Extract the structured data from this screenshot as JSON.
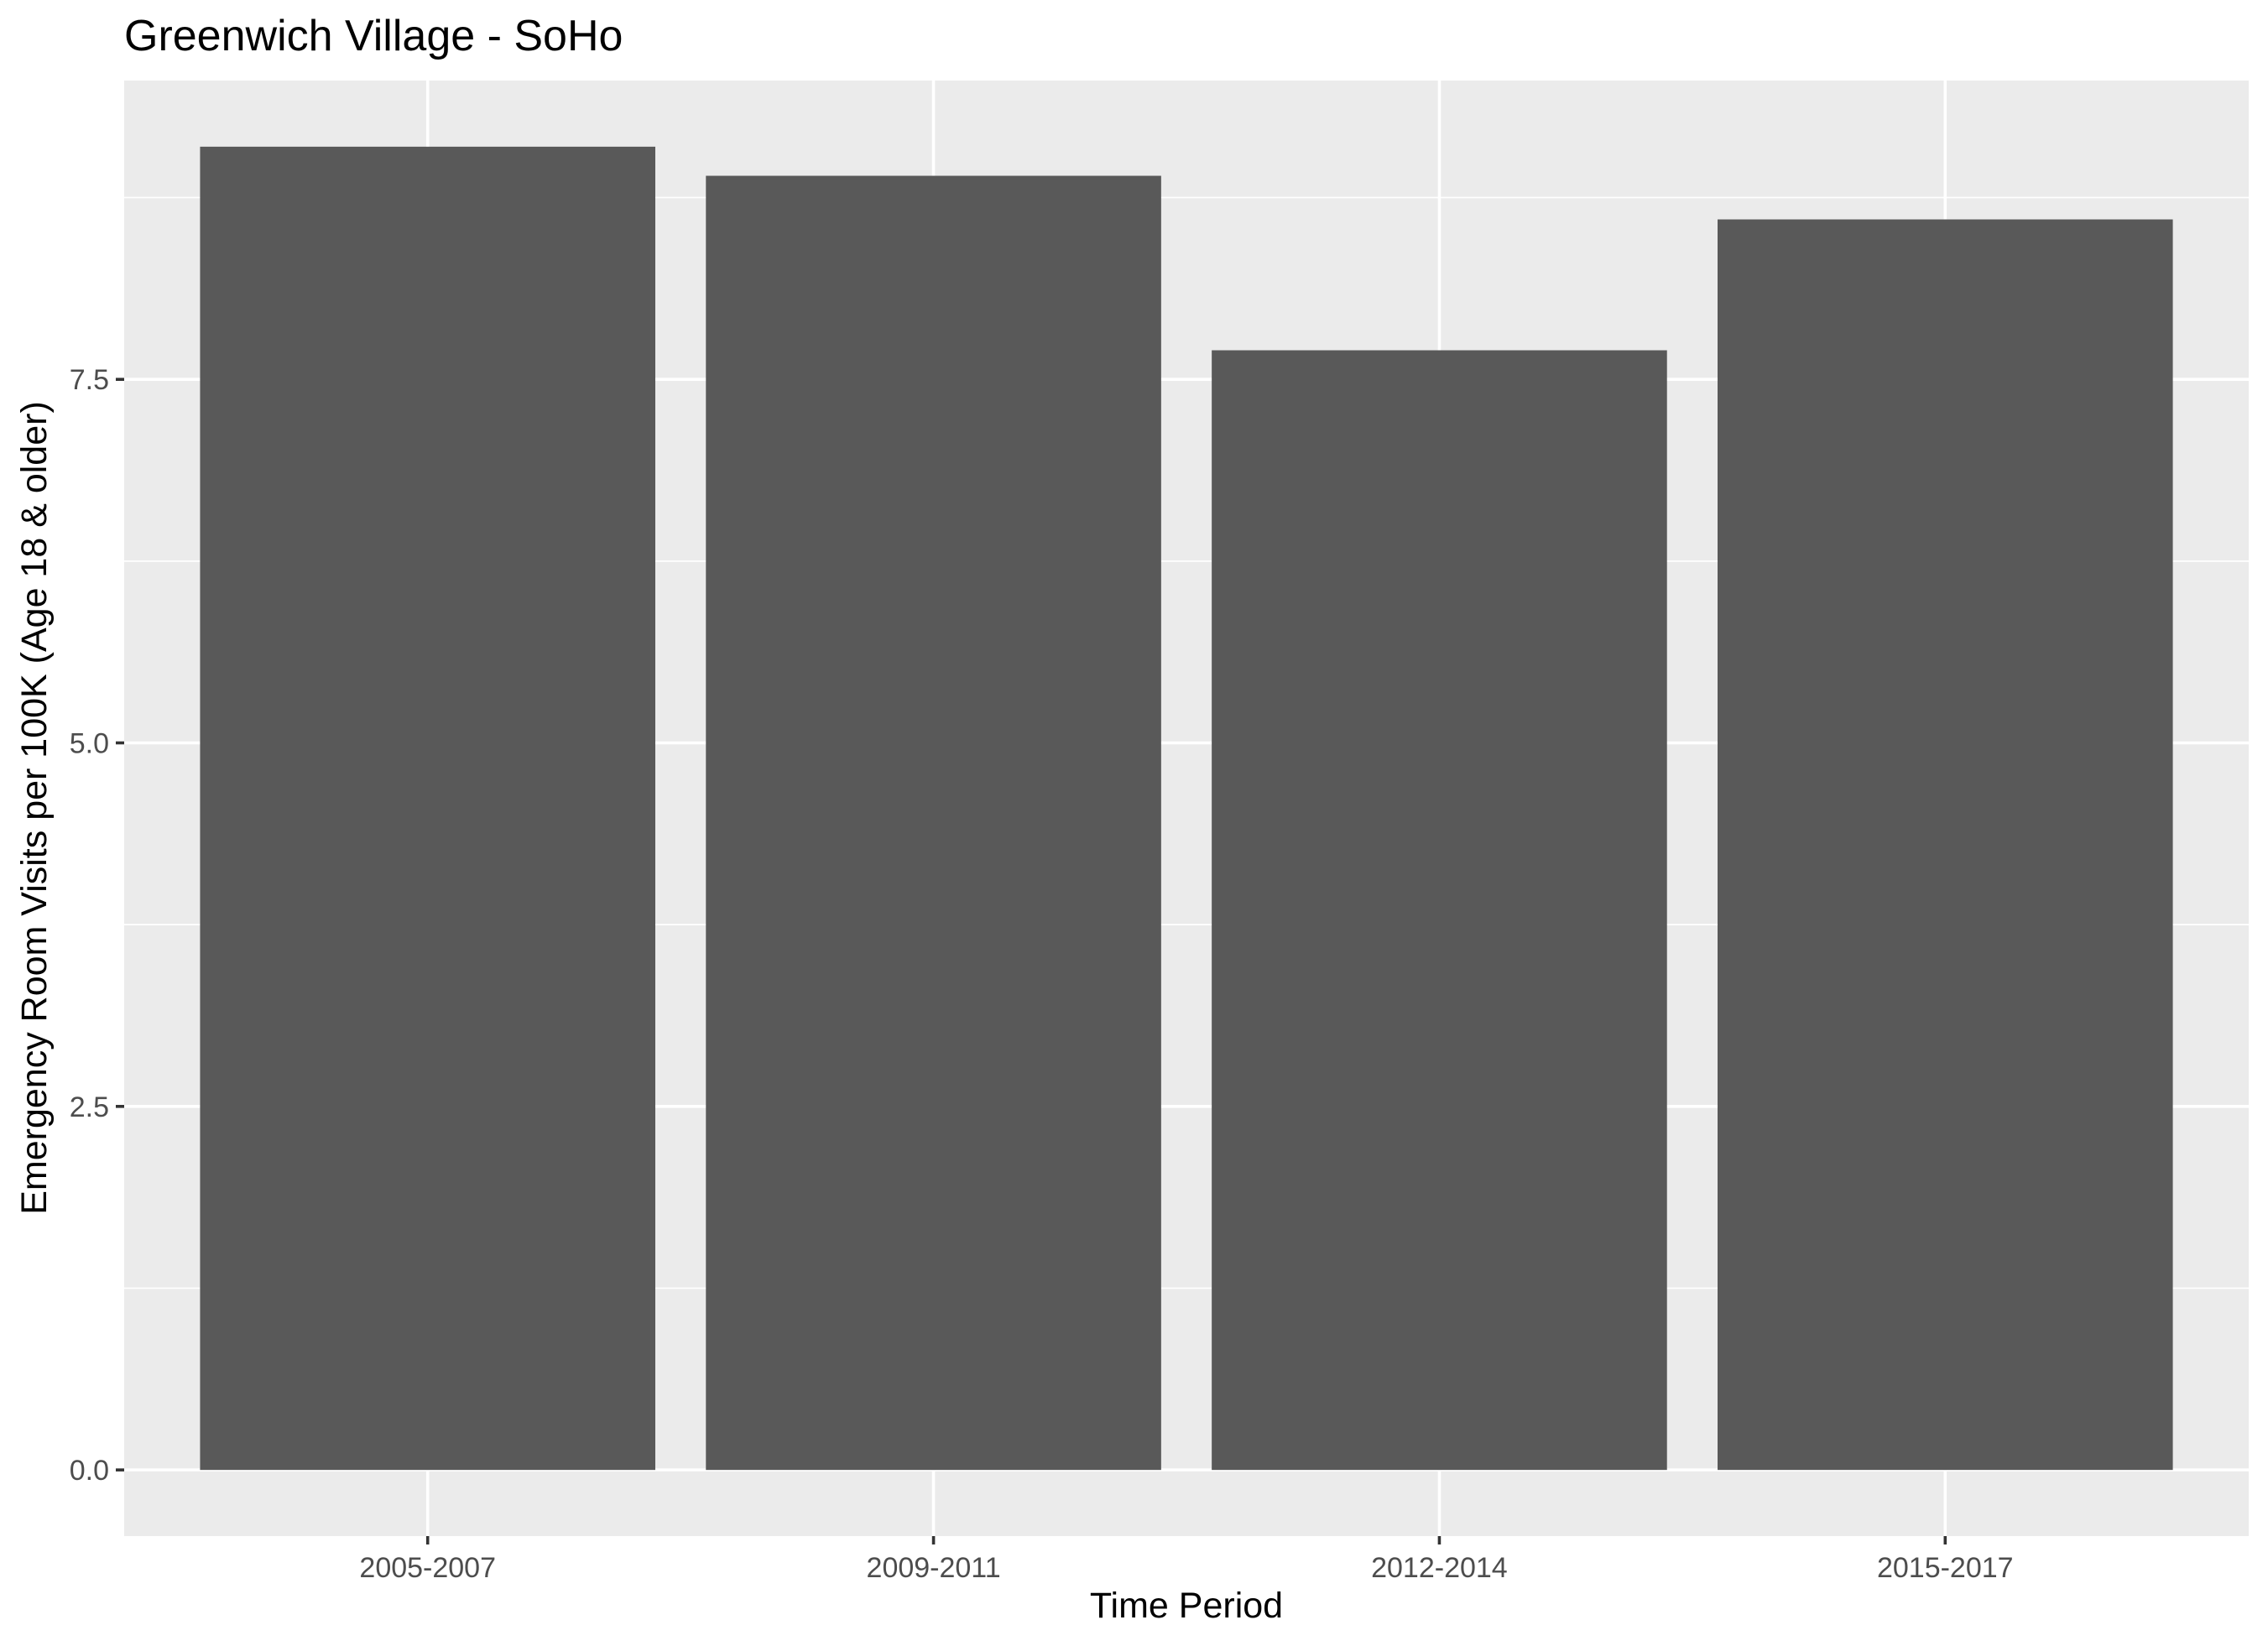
{
  "chart_data": {
    "type": "bar",
    "title": "Greenwich Village - SoHo",
    "xlabel": "Time Period",
    "ylabel": "Emergency Room Visits per 100K (Age 18 & older)",
    "categories": [
      "2005-2007",
      "2009-2011",
      "2012-2014",
      "2015-2017"
    ],
    "values": [
      9.1,
      8.9,
      7.7,
      8.6
    ],
    "y_ticks": [
      0.0,
      2.5,
      5.0,
      7.5
    ],
    "y_tick_labels": [
      "0.0",
      "2.5",
      "5.0",
      "7.5"
    ],
    "ylim": [
      -0.455,
      9.555
    ],
    "grid": true,
    "legend": "none",
    "colors": {
      "bar": "#595959",
      "panel": "#EBEBEB",
      "grid": "#FFFFFF",
      "tick_text": "#4D4D4D"
    }
  }
}
